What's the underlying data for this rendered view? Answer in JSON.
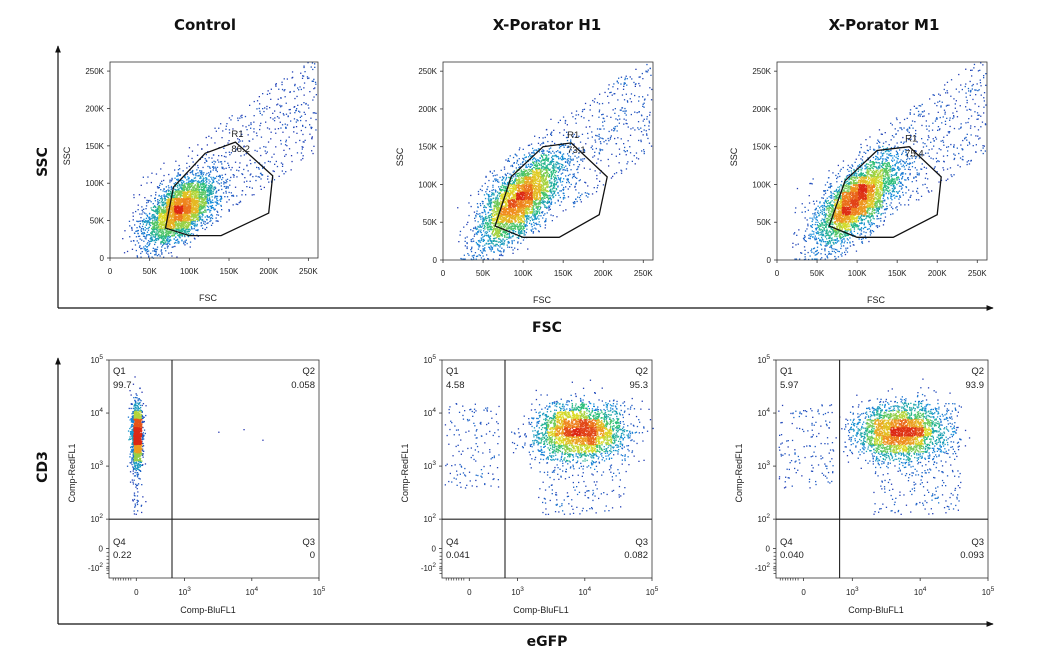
{
  "chart_data": [
    {
      "type": "scatter",
      "title": "Control",
      "xlabel": "FSC",
      "ylabel": "SSC",
      "xticks": [
        "0",
        "50K",
        "100K",
        "150K",
        "200K",
        "250K"
      ],
      "yticks": [
        "0",
        "50K",
        "100K",
        "150K",
        "200K",
        "250K"
      ],
      "xlim": [
        0,
        262144
      ],
      "ylim": [
        0,
        262144
      ],
      "gate": {
        "name": "R1",
        "percent": "86.2",
        "polygon": [
          [
            70000,
            40000
          ],
          [
            80000,
            95000
          ],
          [
            120000,
            140000
          ],
          [
            158000,
            155000
          ],
          [
            205000,
            110000
          ],
          [
            200000,
            60000
          ],
          [
            140000,
            30000
          ],
          [
            100000,
            30000
          ]
        ]
      },
      "population": {
        "center": [
          88000,
          65000
        ],
        "spread": [
          22000,
          22000
        ],
        "correlation": 0.55,
        "n": 3200
      }
    },
    {
      "type": "scatter",
      "title": "X-Porator H1",
      "xlabel": "FSC",
      "ylabel": "SSC",
      "xticks": [
        "0",
        "50K",
        "100K",
        "150K",
        "200K",
        "250K"
      ],
      "yticks": [
        "0",
        "50K",
        "100K",
        "150K",
        "200K",
        "250K"
      ],
      "xlim": [
        0,
        262144
      ],
      "ylim": [
        0,
        262144
      ],
      "gate": {
        "name": "R1",
        "percent": "73.1",
        "polygon": [
          [
            65000,
            45000
          ],
          [
            85000,
            110000
          ],
          [
            125000,
            150000
          ],
          [
            160000,
            155000
          ],
          [
            205000,
            110000
          ],
          [
            195000,
            60000
          ],
          [
            145000,
            30000
          ],
          [
            100000,
            30000
          ]
        ]
      },
      "population": {
        "center": [
          95000,
          80000
        ],
        "spread": [
          26000,
          30000
        ],
        "correlation": 0.7,
        "n": 3400
      }
    },
    {
      "type": "scatter",
      "title": "X-Porator M1",
      "xlabel": "FSC",
      "ylabel": "SSC",
      "xticks": [
        "0",
        "50K",
        "100K",
        "150K",
        "200K",
        "250K"
      ],
      "yticks": [
        "0",
        "50K",
        "100K",
        "150K",
        "200K",
        "250K"
      ],
      "xlim": [
        0,
        262144
      ],
      "ylim": [
        0,
        262144
      ],
      "gate": {
        "name": "R1",
        "percent": "75.4",
        "polygon": [
          [
            65000,
            45000
          ],
          [
            85000,
            105000
          ],
          [
            125000,
            145000
          ],
          [
            165000,
            150000
          ],
          [
            205000,
            110000
          ],
          [
            200000,
            60000
          ],
          [
            145000,
            30000
          ],
          [
            100000,
            30000
          ]
        ]
      },
      "population": {
        "center": [
          98000,
          78000
        ],
        "spread": [
          26000,
          29000
        ],
        "correlation": 0.7,
        "n": 3400
      }
    },
    {
      "type": "scatter",
      "title": "",
      "xlabel": "Comp-BluFL1",
      "ylabel": "Comp-RedFL1",
      "scale": "biexponential",
      "xticks": [
        "0",
        "10^3",
        "10^4",
        "10^5"
      ],
      "yticks": [
        "-10^2",
        "0",
        "10^2",
        "10^3",
        "10^4",
        "10^5"
      ],
      "quadrants": [
        {
          "name": "Q1",
          "percent": "99.7"
        },
        {
          "name": "Q2",
          "percent": "0.058"
        },
        {
          "name": "Q3",
          "percent": "0"
        },
        {
          "name": "Q4",
          "percent": "0.22"
        }
      ],
      "population": {
        "x_center": 0,
        "log_y_center": 3.6
      }
    },
    {
      "type": "scatter",
      "title": "",
      "xlabel": "Comp-BluFL1",
      "ylabel": "Comp-RedFL1",
      "scale": "biexponential",
      "xticks": [
        "0",
        "10^3",
        "10^4",
        "10^5"
      ],
      "yticks": [
        "-10^2",
        "0",
        "10^2",
        "10^3",
        "10^4",
        "10^5"
      ],
      "quadrants": [
        {
          "name": "Q1",
          "percent": "4.58"
        },
        {
          "name": "Q2",
          "percent": "95.3"
        },
        {
          "name": "Q3",
          "percent": "0.082"
        },
        {
          "name": "Q4",
          "percent": "0.041"
        }
      ],
      "population": {
        "log_x_center": 3.9,
        "log_y_center": 3.65
      }
    },
    {
      "type": "scatter",
      "title": "",
      "xlabel": "Comp-BluFL1",
      "ylabel": "Comp-RedFL1",
      "scale": "biexponential",
      "xticks": [
        "0",
        "10^3",
        "10^4",
        "10^5"
      ],
      "yticks": [
        "-10^2",
        "0",
        "10^2",
        "10^3",
        "10^4",
        "10^5"
      ],
      "quadrants": [
        {
          "name": "Q1",
          "percent": "5.97"
        },
        {
          "name": "Q2",
          "percent": "93.9"
        },
        {
          "name": "Q3",
          "percent": "0.093"
        },
        {
          "name": "Q4",
          "percent": "0.040"
        }
      ],
      "population": {
        "log_x_center": 3.7,
        "log_y_center": 3.65
      }
    }
  ],
  "figure": {
    "row1_ylabel": "SSC",
    "row1_xlabel": "FSC",
    "row2_ylabel": "CD3",
    "row2_xlabel": "eGFP"
  }
}
